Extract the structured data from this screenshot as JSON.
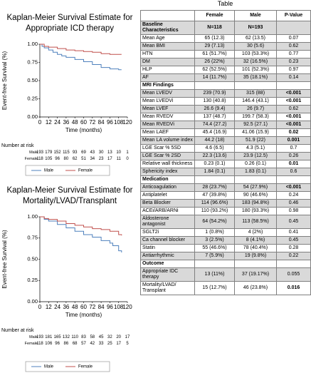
{
  "plots": [
    {
      "title_lines": [
        "Kaplan-Meier Survival Estimate for",
        "Appropriate ICD therapy"
      ],
      "ylabel": "Event-free Survival (%)",
      "xlabel": "Time (months)",
      "yticks": [
        "0.00",
        "0.25",
        "0.50",
        "0.75",
        "1.00"
      ],
      "xticks": [
        "0",
        "12",
        "24",
        "36",
        "48",
        "60",
        "72",
        "84",
        "96",
        "108",
        "120"
      ],
      "risk_header": "Number at risk",
      "risk_rows": [
        {
          "label": "Male",
          "values": [
            "193",
            "179",
            "152",
            "115",
            "93",
            "69",
            "43",
            "30",
            "13",
            "10",
            "1"
          ]
        },
        {
          "label": "Female",
          "values": [
            "118",
            "105",
            "96",
            "80",
            "62",
            "51",
            "34",
            "23",
            "17",
            "11",
            "0"
          ]
        }
      ],
      "legend": [
        {
          "name": "Male",
          "color": "#4f81bd"
        },
        {
          "name": "Female",
          "color": "#c0504d"
        }
      ]
    },
    {
      "title_lines": [
        "Kaplan-Meier Survival Estimate for",
        "Mortality/LVAD/Transplant"
      ],
      "ylabel": "Event-free Survival (%)",
      "xlabel": "Time (months)",
      "yticks": [
        "0.00",
        "0.25",
        "0.50",
        "0.75",
        "1.00"
      ],
      "xticks": [
        "0",
        "12",
        "24",
        "36",
        "48",
        "60",
        "72",
        "84",
        "96",
        "108",
        "120"
      ],
      "risk_header": "Number at risk",
      "risk_rows": [
        {
          "label": "Male",
          "values": [
            "193",
            "181",
            "165",
            "132",
            "110",
            "83",
            "58",
            "45",
            "32",
            "20",
            "17"
          ]
        },
        {
          "label": "Female",
          "values": [
            "118",
            "106",
            "96",
            "86",
            "68",
            "57",
            "42",
            "33",
            "25",
            "17",
            "5"
          ]
        }
      ],
      "legend": [
        {
          "name": "Male",
          "color": "#4f81bd"
        },
        {
          "name": "Female",
          "color": "#c0504d"
        }
      ]
    }
  ],
  "chart_data": [
    {
      "type": "line",
      "title": "Kaplan-Meier Survival Estimate for Appropriate ICD therapy",
      "xlabel": "Time (months)",
      "ylabel": "Event-free Survival (%)",
      "xlim": [
        0,
        120
      ],
      "ylim": [
        0,
        1
      ],
      "series": [
        {
          "name": "Male",
          "color": "#4f81bd",
          "x": [
            0,
            3,
            6,
            12,
            18,
            24,
            30,
            36,
            48,
            60,
            72,
            84,
            96,
            108,
            112
          ],
          "y": [
            1.0,
            0.97,
            0.95,
            0.92,
            0.89,
            0.86,
            0.84,
            0.82,
            0.79,
            0.76,
            0.72,
            0.68,
            0.66,
            0.65,
            0.65
          ]
        },
        {
          "name": "Female",
          "color": "#c0504d",
          "x": [
            0,
            6,
            12,
            24,
            36,
            48,
            60,
            72,
            84,
            96,
            108,
            112
          ],
          "y": [
            1.0,
            0.97,
            0.96,
            0.94,
            0.92,
            0.91,
            0.9,
            0.89,
            0.87,
            0.86,
            0.86,
            0.86
          ]
        }
      ]
    },
    {
      "type": "line",
      "title": "Kaplan-Meier Survival Estimate for Mortality/LVAD/Transplant",
      "xlabel": "Time (months)",
      "ylabel": "Event-free Survival (%)",
      "xlim": [
        0,
        120
      ],
      "ylim": [
        0,
        1
      ],
      "series": [
        {
          "name": "Male",
          "color": "#4f81bd",
          "x": [
            0,
            6,
            12,
            24,
            36,
            48,
            60,
            72,
            84,
            96,
            100,
            108,
            112
          ],
          "y": [
            1.0,
            0.97,
            0.95,
            0.91,
            0.87,
            0.83,
            0.79,
            0.76,
            0.72,
            0.69,
            0.66,
            0.6,
            0.58
          ]
        },
        {
          "name": "Female",
          "color": "#c0504d",
          "x": [
            0,
            6,
            12,
            24,
            36,
            48,
            60,
            72,
            84,
            96,
            108,
            112
          ],
          "y": [
            1.0,
            0.98,
            0.97,
            0.95,
            0.92,
            0.9,
            0.88,
            0.86,
            0.85,
            0.83,
            0.79,
            0.78
          ]
        }
      ]
    }
  ],
  "table": {
    "caption": "Table",
    "header": [
      "",
      "Female",
      "Male",
      "P-Value"
    ],
    "rows": [
      {
        "cells": [
          "Baseline Characteristics",
          "N=118",
          "N=193",
          ""
        ],
        "section": true,
        "shade": true,
        "bold_p": false
      },
      {
        "cells": [
          "Mean Age",
          "65 (12.3)",
          "62 (13.5)",
          "0.07"
        ],
        "section": false,
        "shade": false,
        "bold_p": false
      },
      {
        "cells": [
          "Mean BMI",
          "29 (7.13)",
          "30 (5.6)",
          "0.62"
        ],
        "section": false,
        "shade": true,
        "bold_p": false
      },
      {
        "cells": [
          "HTN",
          "61 (51.7%)",
          "103 (53.3%)",
          "0.77"
        ],
        "section": false,
        "shade": false,
        "bold_p": false
      },
      {
        "cells": [
          "DM",
          "26 (22%)",
          "32 (16.5%)",
          "0.23"
        ],
        "section": false,
        "shade": true,
        "bold_p": false
      },
      {
        "cells": [
          "HLP",
          "62 (52.5%)",
          "101 (52.3%)",
          "0.97"
        ],
        "section": false,
        "shade": false,
        "bold_p": false
      },
      {
        "cells": [
          "AF",
          "14 (11.7%)",
          "35 (18.1%)",
          "0.14"
        ],
        "section": false,
        "shade": true,
        "bold_p": false
      },
      {
        "cells": [
          "MRI Findings",
          "",
          "",
          ""
        ],
        "section": true,
        "shade": false,
        "bold_p": false
      },
      {
        "cells": [
          "Mean LVEDV",
          "239 (70.9)",
          "315 (88)",
          "<0.001"
        ],
        "section": false,
        "shade": true,
        "bold_p": true
      },
      {
        "cells": [
          "Mean LVEDVi",
          "130 (40.8)",
          "146.4 (43.1)",
          "<0.001"
        ],
        "section": false,
        "shade": false,
        "bold_p": true
      },
      {
        "cells": [
          "Mean LVEF",
          "26.6 (9.4)",
          "26 (9.7)",
          "0.62"
        ],
        "section": false,
        "shade": true,
        "bold_p": false
      },
      {
        "cells": [
          "Mean RVEDV",
          "137 (48.7)",
          "199.7 (58.3)",
          "<0.001"
        ],
        "section": false,
        "shade": false,
        "bold_p": true
      },
      {
        "cells": [
          "Mean RVEDVi",
          "74.4 (27.2)",
          "92.5 (27.1)",
          "<0.001"
        ],
        "section": false,
        "shade": true,
        "bold_p": true
      },
      {
        "cells": [
          "Mean LAEF",
          "45.4 (16.9)",
          "41.06 (15.9)",
          "0.02"
        ],
        "section": false,
        "shade": false,
        "bold_p": true
      },
      {
        "cells": [
          "Mean LA volume index",
          "44.2 (18)",
          "51.9 (22)",
          "0.001"
        ],
        "section": false,
        "shade": true,
        "bold_p": true
      },
      {
        "cells": [
          "LGE Scar % 5SD",
          "4.6 (6.5)",
          "4.3 (5.1)",
          "0.7"
        ],
        "section": false,
        "shade": false,
        "bold_p": false
      },
      {
        "cells": [
          "LGE Scar % 2SD",
          "22.3 (13.6)",
          "23.9 (12.5)",
          "0.26"
        ],
        "section": false,
        "shade": true,
        "bold_p": false
      },
      {
        "cells": [
          "Relative wall thickness",
          "0.23 (0.1)",
          "0.26 (0.1)",
          "0.01"
        ],
        "section": false,
        "shade": false,
        "bold_p": true
      },
      {
        "cells": [
          "Sphericity index",
          "1.84 (0.1)",
          "1.83 (0.1)",
          "0.6"
        ],
        "section": false,
        "shade": true,
        "bold_p": false
      },
      {
        "cells": [
          "Medication",
          "",
          "",
          ""
        ],
        "section": true,
        "shade": false,
        "bold_p": false
      },
      {
        "cells": [
          "Anticoagulation",
          "28 (23.7%)",
          "54 (27.9%)",
          "<0.001"
        ],
        "section": false,
        "shade": true,
        "bold_p": true
      },
      {
        "cells": [
          "Antiplatelet",
          "47 (39.8%)",
          "90 (46.6%)",
          "0.24"
        ],
        "section": false,
        "shade": false,
        "bold_p": false
      },
      {
        "cells": [
          "Beta Blocker",
          "114 (96.6%)",
          "183 (94.8%)",
          "0.46"
        ],
        "section": false,
        "shade": true,
        "bold_p": false
      },
      {
        "cells": [
          "ACEi/ARB/ARNi",
          "110 (93.2%)",
          "180 (93.3%)",
          "0.98"
        ],
        "section": false,
        "shade": false,
        "bold_p": false
      },
      {
        "cells": [
          "Aldosterone antagonist",
          "64 (54.2%)",
          "113 (58.5%)",
          "0.45"
        ],
        "section": false,
        "shade": true,
        "bold_p": false
      },
      {
        "cells": [
          "SGLT2i",
          "1 (0.8%)",
          "4 (2%)",
          "0.41"
        ],
        "section": false,
        "shade": false,
        "bold_p": false
      },
      {
        "cells": [
          "Ca channel blocker",
          "3 (2.5%)",
          "8 (4.1%)",
          "0.45"
        ],
        "section": false,
        "shade": true,
        "bold_p": false
      },
      {
        "cells": [
          "Statin",
          "55 (46.6%)",
          "78 (40.4%)",
          "0.28"
        ],
        "section": false,
        "shade": false,
        "bold_p": false
      },
      {
        "cells": [
          "Antiarrhythmic",
          "7 (5.9%)",
          "19 (9.8%)",
          "0.22"
        ],
        "section": false,
        "shade": true,
        "bold_p": false
      },
      {
        "cells": [
          "Outcome",
          "",
          "",
          ""
        ],
        "section": true,
        "shade": false,
        "bold_p": false
      },
      {
        "cells": [
          "Appropriate IDC therapy",
          "13 (11%)",
          "37 (19.17%)",
          "0.055"
        ],
        "section": false,
        "shade": true,
        "bold_p": false
      },
      {
        "cells": [
          "Mortality/LVAD/ Transplant",
          "15 (12.7%)",
          "46 (23.8%)",
          "0.016"
        ],
        "section": false,
        "shade": false,
        "bold_p": true
      }
    ]
  }
}
